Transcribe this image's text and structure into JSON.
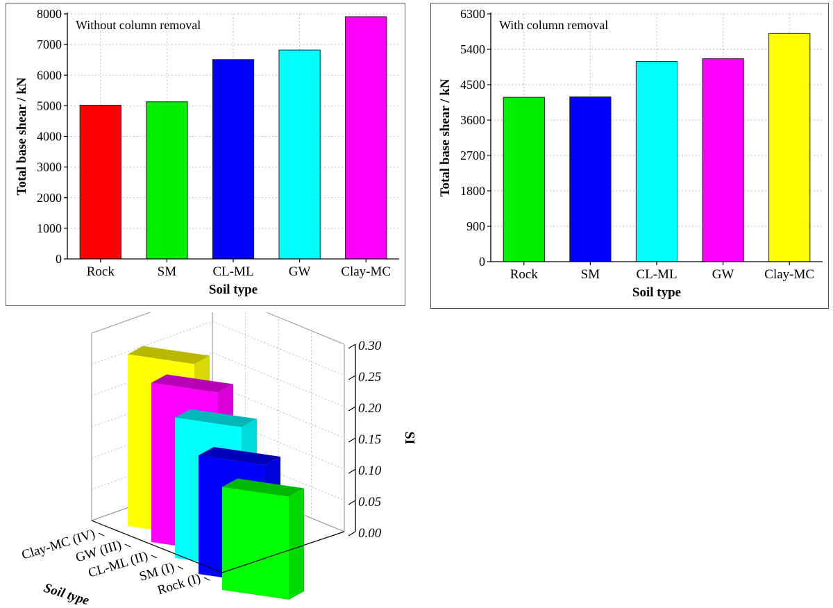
{
  "chart_data": [
    {
      "type": "bar",
      "annotation": "Without column removal",
      "xlabel": "Soil type",
      "ylabel": "Total base shear / kN",
      "categories": [
        "Rock",
        "SM",
        "CL-ML",
        "GW",
        "Clay-MC"
      ],
      "values": [
        5020,
        5130,
        6510,
        6820,
        7910
      ],
      "colors": [
        "#ff0000",
        "#00ee00",
        "#0000ff",
        "#00ffff",
        "#ff00ff"
      ],
      "ylim": [
        0,
        8000
      ],
      "yticks": [
        0,
        1000,
        2000,
        3000,
        4000,
        5000,
        6000,
        7000,
        8000
      ],
      "grid": true
    },
    {
      "type": "bar",
      "annotation": "With column removal",
      "xlabel": "Soil type",
      "ylabel": "Total base shear / kN",
      "categories": [
        "Rock",
        "SM",
        "CL-ML",
        "GW",
        "Clay-MC"
      ],
      "values": [
        4180,
        4190,
        5090,
        5160,
        5800
      ],
      "colors": [
        "#00ee00",
        "#0000ff",
        "#00ffff",
        "#ff00ff",
        "#ffff00"
      ],
      "ylim": [
        0,
        6300
      ],
      "yticks": [
        0,
        900,
        1800,
        2700,
        3600,
        4500,
        5400,
        6300
      ],
      "grid": true
    },
    {
      "type": "bar",
      "projection": "3d",
      "xlabel": "Soil type",
      "ylabel": "SI",
      "categories": [
        "Clay-MC (IV)",
        "GW (III)",
        "CL-ML (II)",
        "SM (I)",
        "Rock (I)"
      ],
      "values": [
        0.275,
        0.255,
        0.225,
        0.19,
        0.165
      ],
      "colors": [
        "#ffff00",
        "#ff00ff",
        "#00ffff",
        "#0000ff",
        "#00ff00"
      ],
      "ylim": [
        0,
        0.3
      ],
      "yticks": [
        "0.00",
        "0.05",
        "0.10",
        "0.15",
        "0.20",
        "0.25",
        "0.30"
      ],
      "grid": true
    }
  ]
}
